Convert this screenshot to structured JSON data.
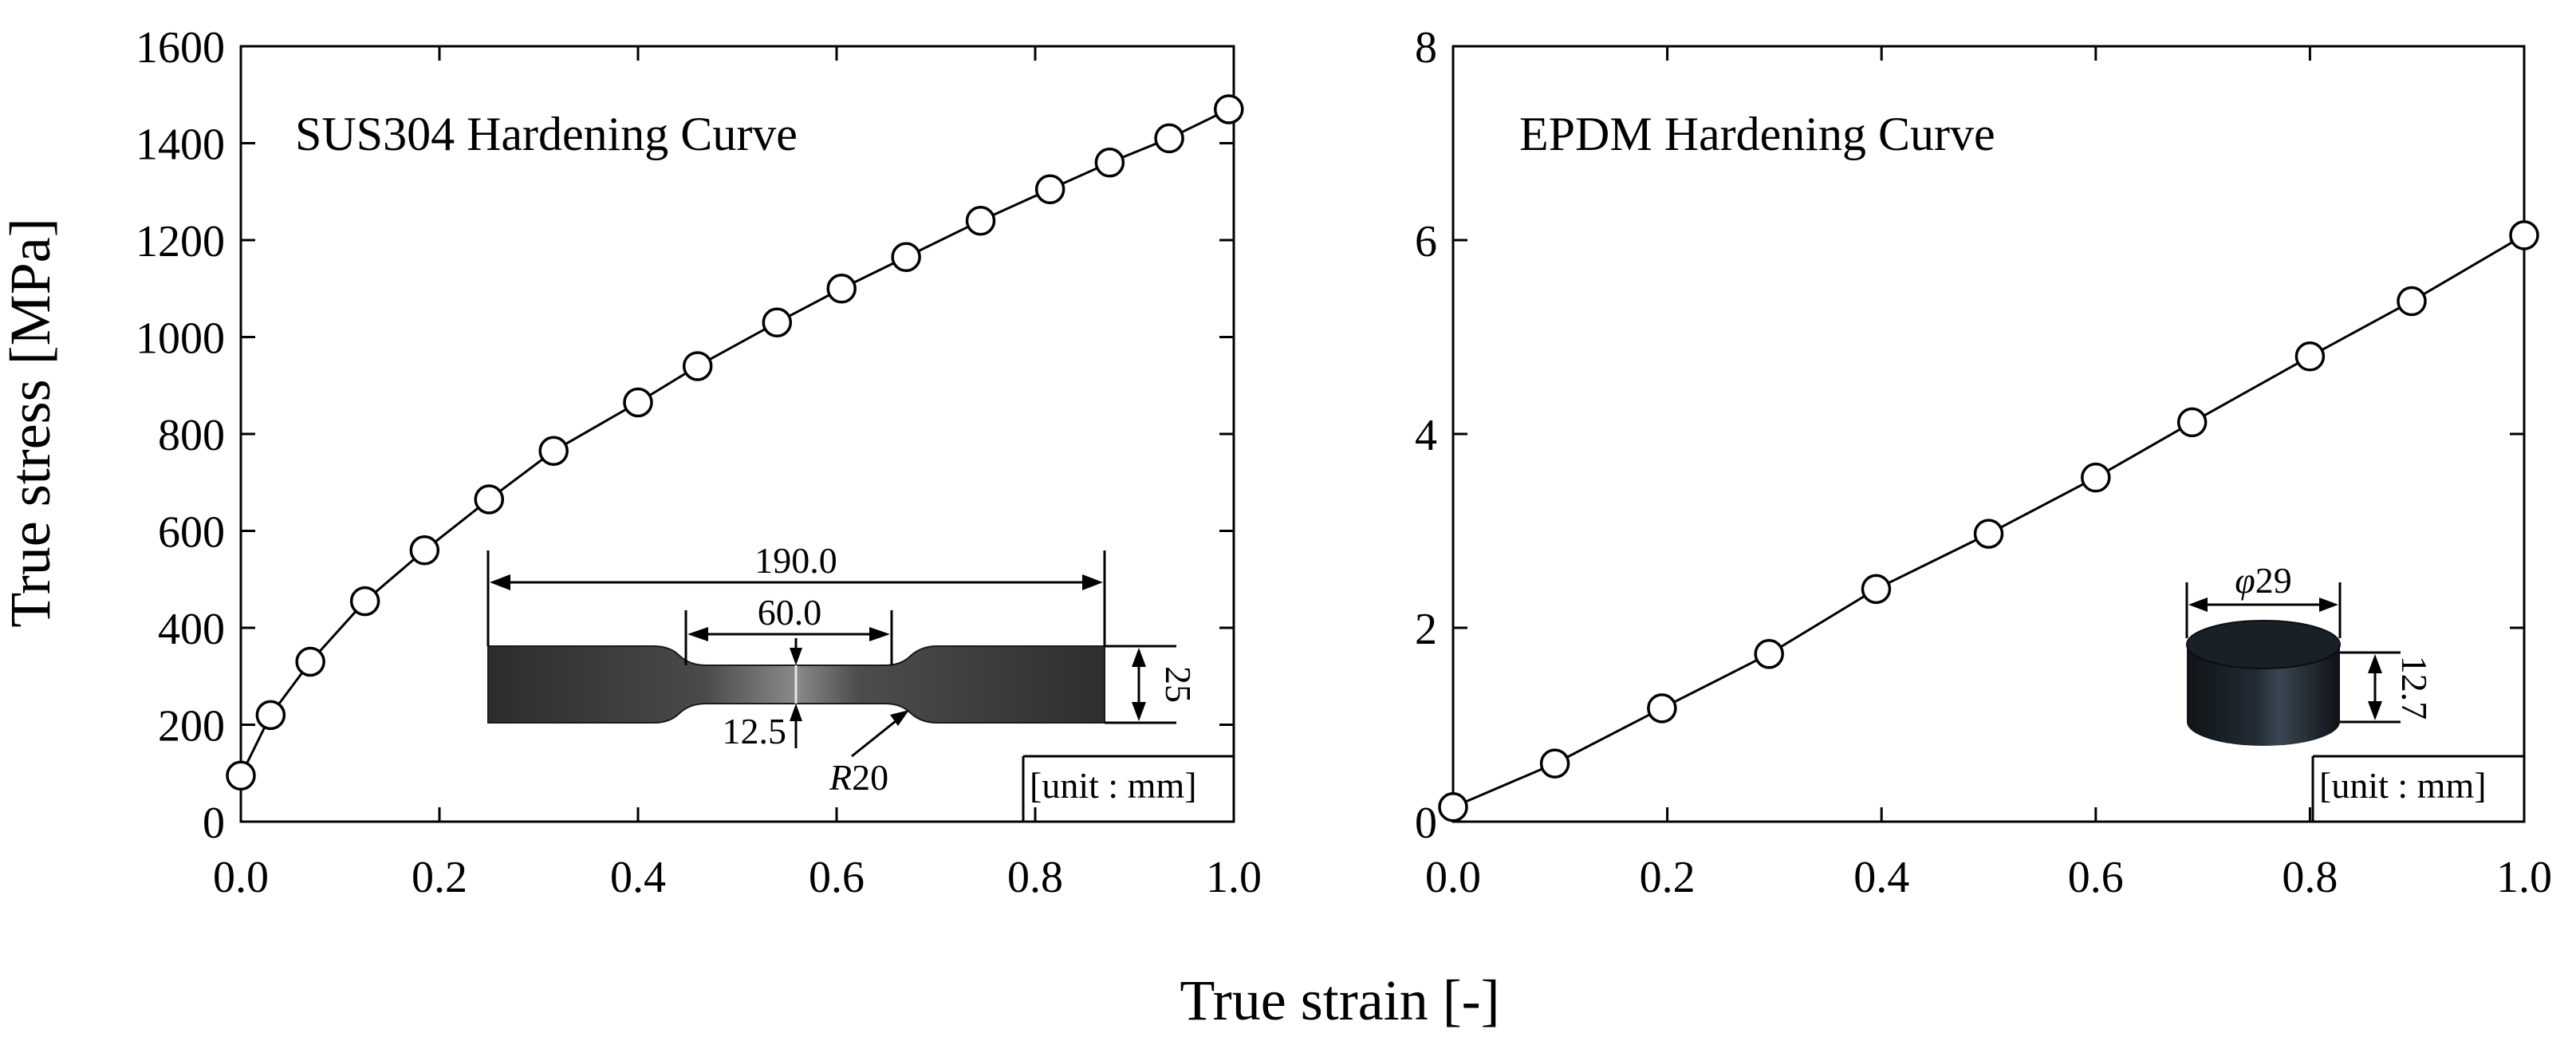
{
  "figure": {
    "ylabel": "True stress [MPa]",
    "xlabel": "True strain [-]"
  },
  "chart_data": [
    {
      "type": "line",
      "title": "SUS304 Hardening Curve",
      "xlabel": "True strain [-]",
      "ylabel": "True stress [MPa]",
      "xlim": [
        0,
        1
      ],
      "ylim": [
        0,
        1600
      ],
      "xticks": [
        "0.0",
        "0.2",
        "0.4",
        "0.6",
        "0.8",
        "1.0"
      ],
      "yticks": [
        "0",
        "200",
        "400",
        "600",
        "800",
        "1000",
        "1200",
        "1400",
        "1600"
      ],
      "x": [
        0.0,
        0.03,
        0.07,
        0.125,
        0.185,
        0.25,
        0.315,
        0.4,
        0.46,
        0.54,
        0.605,
        0.67,
        0.745,
        0.815,
        0.875,
        0.935,
        0.995
      ],
      "y": [
        95,
        220,
        330,
        455,
        560,
        665,
        765,
        865,
        940,
        1030,
        1100,
        1165,
        1240,
        1305,
        1360,
        1410,
        1470
      ],
      "marker": "open-circle",
      "inset": {
        "overall_length": "190.0",
        "gauge_length": "60.0",
        "width": "25",
        "gauge_width": "12.5",
        "radius_prefix": "R",
        "radius_value": "20",
        "unit": "[unit : mm]"
      }
    },
    {
      "type": "line",
      "title": "EPDM Hardening Curve",
      "xlabel": "True strain [-]",
      "ylabel": "",
      "xlim": [
        0,
        1
      ],
      "ylim": [
        0,
        8
      ],
      "xticks": [
        "0.0",
        "0.2",
        "0.4",
        "0.6",
        "0.8",
        "1.0"
      ],
      "yticks": [
        "0",
        "2",
        "4",
        "6",
        "8"
      ],
      "x": [
        0.0,
        0.095,
        0.195,
        0.295,
        0.395,
        0.5,
        0.6,
        0.69,
        0.8,
        0.895,
        1.0
      ],
      "y": [
        0.15,
        0.6,
        1.17,
        1.73,
        2.4,
        2.97,
        3.55,
        4.12,
        4.8,
        5.37,
        6.05
      ],
      "marker": "open-circle",
      "inset": {
        "diameter_symbol": "φ",
        "diameter": "29",
        "height": "12.7",
        "unit": "[unit : mm]"
      }
    }
  ]
}
